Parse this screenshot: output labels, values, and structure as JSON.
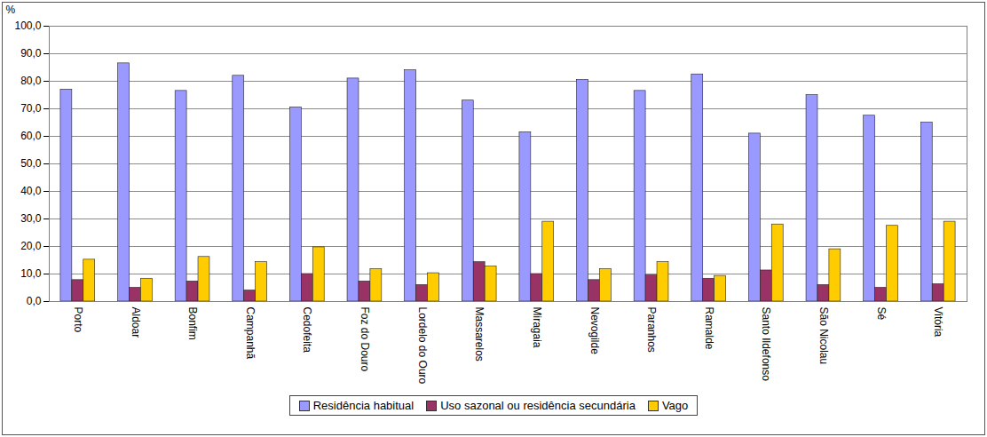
{
  "chart_data": {
    "type": "bar",
    "y_label": "%",
    "categories": [
      "Porto",
      "Aldoar",
      "Bonfim",
      "Campanhã",
      "Cedofeita",
      "Foz do Douro",
      "Lordelo do Ouro",
      "Massarelos",
      "Miragaia",
      "Nevogilde",
      "Paranhos",
      "Ramalde",
      "Santo Ildefonso",
      "São Nicolau",
      "Sé",
      "Vitória"
    ],
    "series": [
      {
        "name": "Residência habitual",
        "color": "#9999ff",
        "values": [
          77,
          86.5,
          76.5,
          82,
          70.5,
          81,
          84,
          73,
          61.5,
          80.5,
          76.5,
          82.5,
          61,
          75,
          67.5,
          65
        ]
      },
      {
        "name": "Uso sazonal ou residência secundária",
        "color": "#993366",
        "values": [
          7.8,
          5,
          7.3,
          4,
          10,
          7.3,
          6,
          14.3,
          10,
          7.8,
          9.5,
          8.3,
          11.3,
          6,
          5,
          6.3
        ]
      },
      {
        "name": "Vago",
        "color": "#ffcc00",
        "values": [
          15.2,
          8.3,
          16.2,
          14.3,
          19.7,
          11.8,
          10.3,
          12.7,
          29,
          11.8,
          14.3,
          9.3,
          28,
          19,
          27.5,
          29
        ]
      }
    ],
    "ylim": [
      0,
      100
    ],
    "yticks": [
      {
        "value": 0,
        "label": "0,0"
      },
      {
        "value": 10,
        "label": "10,0"
      },
      {
        "value": 20,
        "label": "20,0"
      },
      {
        "value": 30,
        "label": "30,0"
      },
      {
        "value": 40,
        "label": "40,0"
      },
      {
        "value": 50,
        "label": "50,0"
      },
      {
        "value": 60,
        "label": "60,0"
      },
      {
        "value": 70,
        "label": "70,0"
      },
      {
        "value": 80,
        "label": "80,0"
      },
      {
        "value": 90,
        "label": "90,0"
      },
      {
        "value": 100,
        "label": "100,0"
      }
    ],
    "grid": true,
    "legend": "bottom"
  }
}
